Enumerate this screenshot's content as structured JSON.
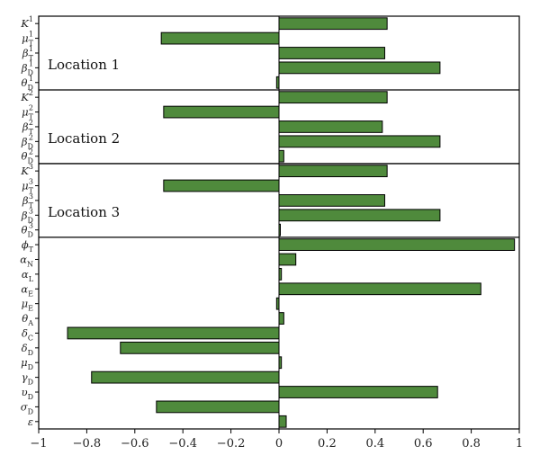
{
  "chart_data": {
    "type": "bar",
    "orientation": "horizontal",
    "xlim": [
      -1,
      1
    ],
    "xticks": [
      -1,
      -0.8,
      -0.6,
      -0.4,
      -0.2,
      0,
      0.2,
      0.4,
      0.6,
      0.8,
      1
    ],
    "xtick_labels": [
      "−1",
      "−0.8",
      "−0.6",
      "−0.4",
      "−0.2",
      "0",
      "0.2",
      "0.4",
      "0.6",
      "0.8",
      "1"
    ],
    "bar_color": "#4f8a3c",
    "bar_edge_color": "#000000",
    "categories": [
      {
        "base": "K",
        "sub": "",
        "sup": "1",
        "value": 0.45
      },
      {
        "base": "μ",
        "sub": "T",
        "sup": "1",
        "value": -0.49
      },
      {
        "base": "β",
        "sub": "T",
        "sup": "1",
        "value": 0.44
      },
      {
        "base": "β",
        "sub": "D",
        "sup": "1",
        "value": 0.67
      },
      {
        "base": "θ",
        "sub": "D",
        "sup": "1",
        "value": -0.01
      },
      {
        "base": "K",
        "sub": "",
        "sup": "2",
        "value": 0.45
      },
      {
        "base": "μ",
        "sub": "T",
        "sup": "2",
        "value": -0.48
      },
      {
        "base": "β",
        "sub": "T",
        "sup": "2",
        "value": 0.43
      },
      {
        "base": "β",
        "sub": "D",
        "sup": "2",
        "value": 0.67
      },
      {
        "base": "θ",
        "sub": "D",
        "sup": "2",
        "value": 0.02
      },
      {
        "base": "K",
        "sub": "",
        "sup": "3",
        "value": 0.45
      },
      {
        "base": "μ",
        "sub": "T",
        "sup": "3",
        "value": -0.48
      },
      {
        "base": "β",
        "sub": "T",
        "sup": "3",
        "value": 0.44
      },
      {
        "base": "β",
        "sub": "D",
        "sup": "3",
        "value": 0.67
      },
      {
        "base": "θ",
        "sub": "D",
        "sup": "3",
        "value": 0.0
      },
      {
        "base": "ϕ",
        "sub": "T",
        "sup": "",
        "value": 0.98
      },
      {
        "base": "α",
        "sub": "N",
        "sup": "",
        "value": 0.07
      },
      {
        "base": "α",
        "sub": "L",
        "sup": "",
        "value": 0.01
      },
      {
        "base": "α",
        "sub": "E",
        "sup": "",
        "value": 0.84
      },
      {
        "base": "μ",
        "sub": "E",
        "sup": "",
        "value": -0.01
      },
      {
        "base": "θ",
        "sub": "A",
        "sup": "",
        "value": 0.02
      },
      {
        "base": "δ",
        "sub": "C",
        "sup": "",
        "value": -0.88
      },
      {
        "base": "δ",
        "sub": "D",
        "sup": "",
        "value": -0.66
      },
      {
        "base": "μ",
        "sub": "D",
        "sup": "",
        "value": 0.01
      },
      {
        "base": "γ",
        "sub": "D",
        "sup": "",
        "value": -0.78
      },
      {
        "base": "υ",
        "sub": "D",
        "sup": "",
        "value": 0.66
      },
      {
        "base": "σ",
        "sub": "D",
        "sup": "",
        "value": -0.51
      },
      {
        "base": "ε",
        "sub": "",
        "sup": "",
        "value": 0.03
      }
    ],
    "groups": [
      {
        "label": "Location 1",
        "start_index": 0,
        "end_index": 4
      },
      {
        "label": "Location 2",
        "start_index": 5,
        "end_index": 9
      },
      {
        "label": "Location 3",
        "start_index": 10,
        "end_index": 14
      }
    ]
  }
}
